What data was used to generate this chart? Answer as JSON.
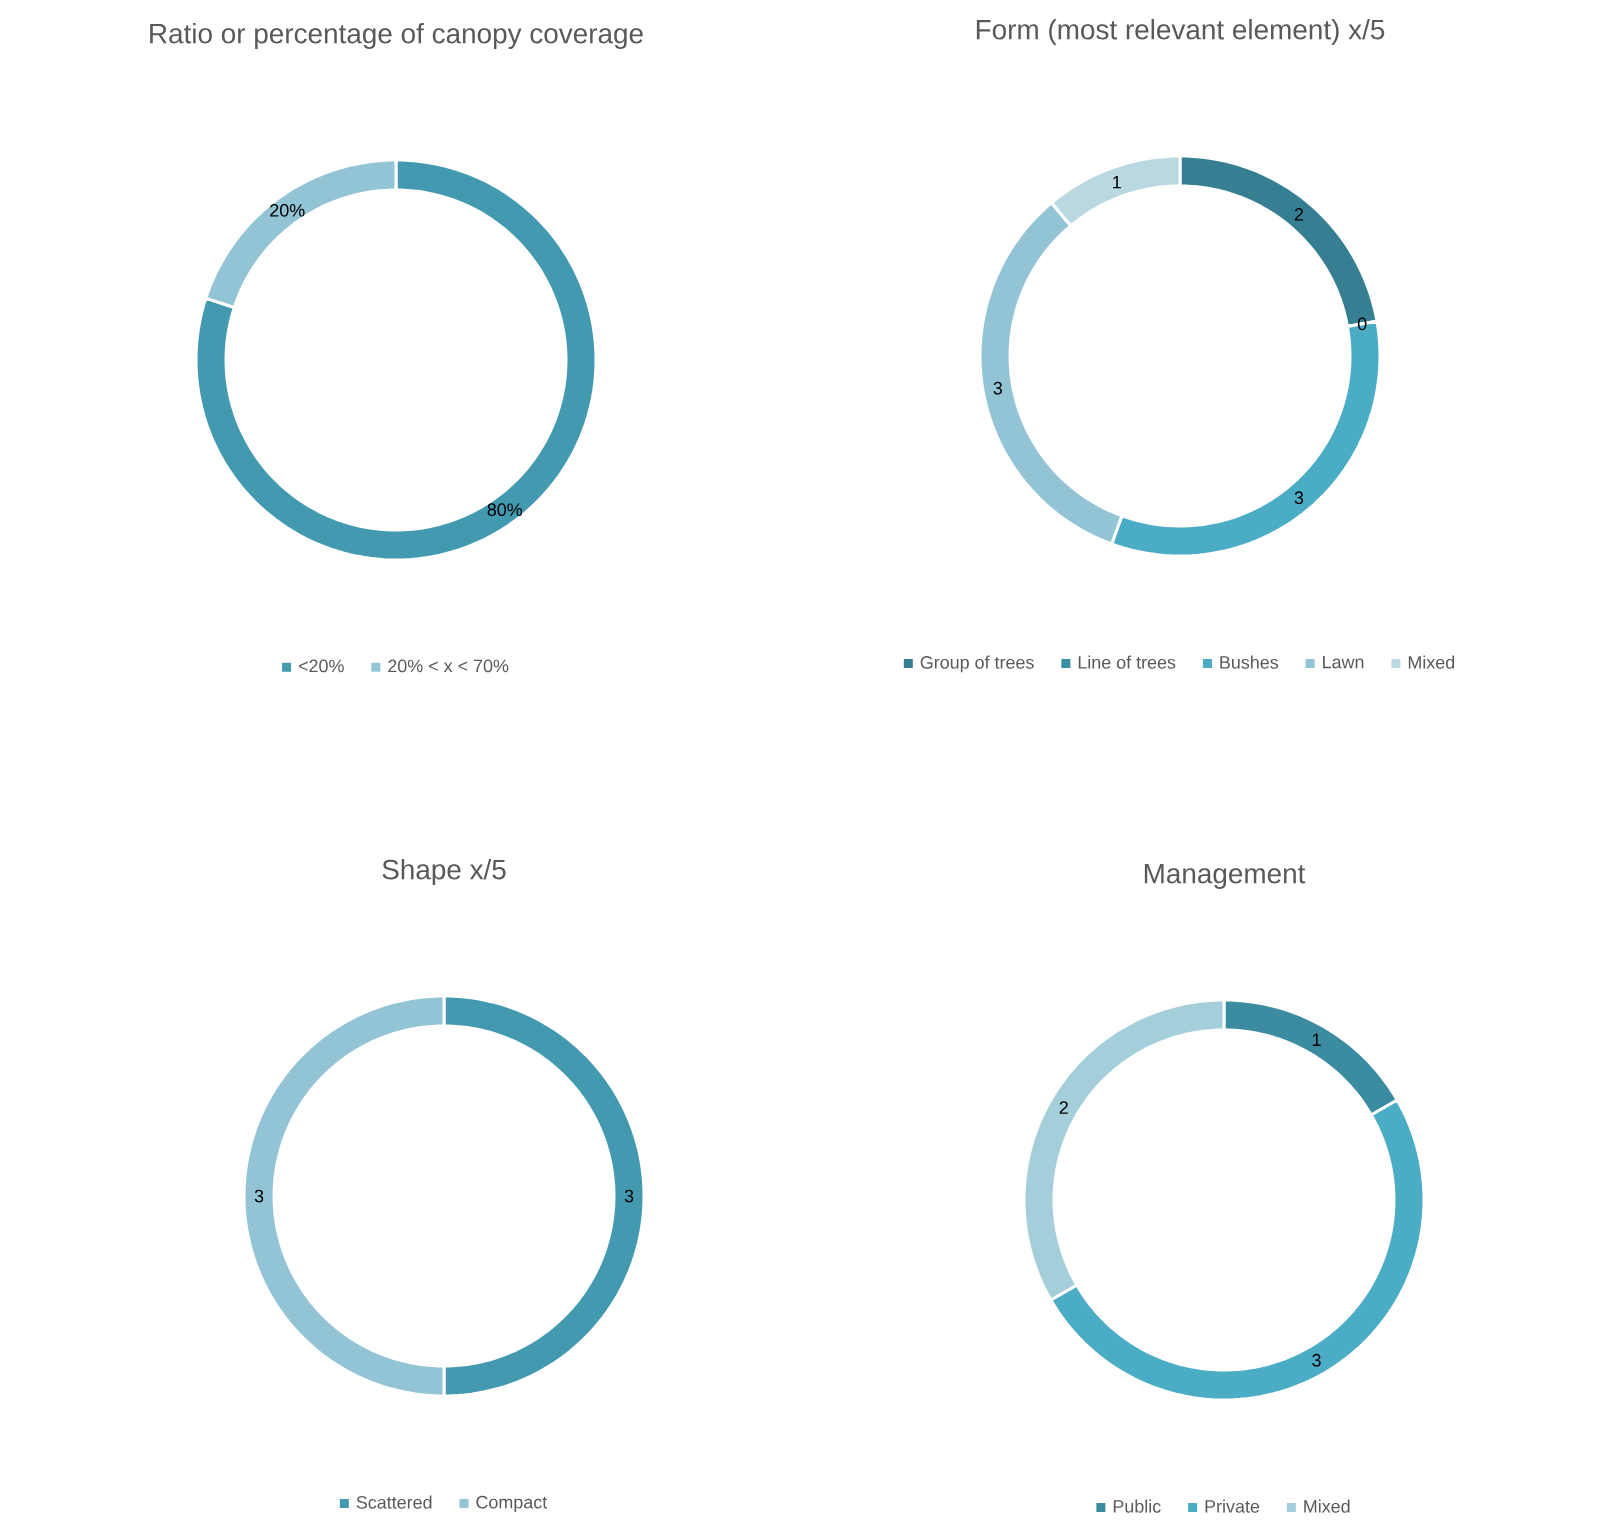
{
  "chart_data": [
    {
      "type": "donut",
      "title": "Ratio or percentage of canopy coverage",
      "categories": [
        "<20%",
        "20% < x < 70%"
      ],
      "values": [
        80,
        20
      ],
      "colors": [
        "#4299b0",
        "#92c4d5"
      ],
      "value_labels": [
        "80%",
        "20%"
      ],
      "legend": "bottom"
    },
    {
      "type": "donut",
      "title": "Form (most relevant element) x/5",
      "categories": [
        "Group of trees",
        "Line of trees",
        "Bushes",
        "Lawn",
        "Mixed"
      ],
      "values": [
        2,
        0,
        3,
        3,
        1
      ],
      "colors": [
        "#367f92",
        "#3a8fa5",
        "#4aacc5",
        "#93c4d5",
        "#b9d8e2"
      ],
      "value_labels": [
        "2",
        "0",
        "3",
        "3",
        "1"
      ],
      "legend": "bottom"
    },
    {
      "type": "donut",
      "title": "Shape x/5",
      "categories": [
        "Scattered",
        "Compact"
      ],
      "values": [
        3,
        3
      ],
      "colors": [
        "#4299b0",
        "#93c4d5"
      ],
      "data_labels": true,
      "legend": "bottom"
    },
    {
      "type": "donut",
      "title": "Management",
      "categories": [
        "Public",
        "Private",
        "Mixed"
      ],
      "values": [
        1,
        3,
        2
      ],
      "colors": [
        "#3b8ba1",
        "#4aacc5",
        "#a5cedb"
      ],
      "data_labels": true,
      "legend": "bottom"
    }
  ]
}
